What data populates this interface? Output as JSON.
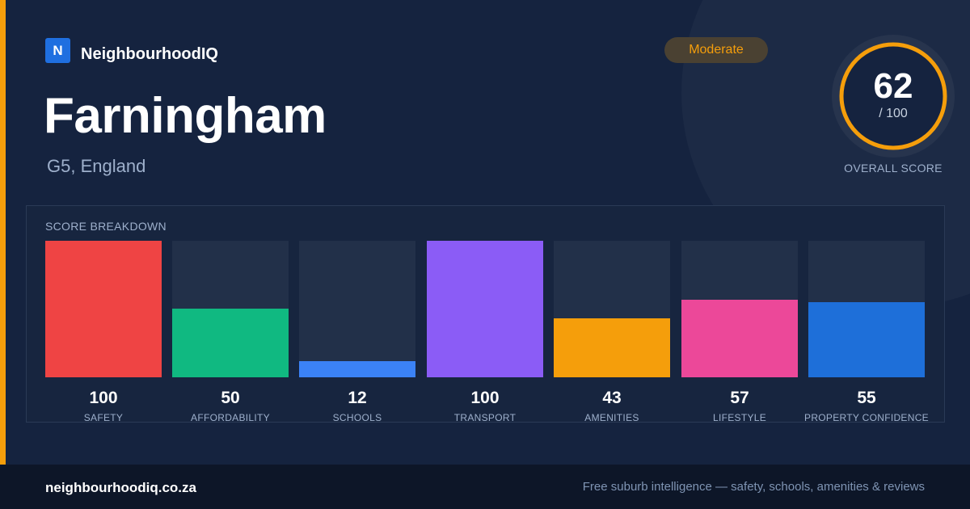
{
  "brand": {
    "logo_letter": "N",
    "name": "NeighbourhoodIQ"
  },
  "location": {
    "name": "Farningham",
    "region": "G5, England"
  },
  "rating_badge": {
    "label": "Moderate",
    "color": "#f59e0b"
  },
  "overall": {
    "score": "62",
    "max_label": "/ 100",
    "label": "OVERALL SCORE",
    "fraction": 0.62,
    "ring_color": "#f59e0b"
  },
  "breakdown": {
    "title": "SCORE BREAKDOWN",
    "max": 100,
    "items": [
      {
        "label": "SAFETY",
        "value": 100,
        "color": "#ef4444"
      },
      {
        "label": "AFFORDABILITY",
        "value": 50,
        "color": "#10b981"
      },
      {
        "label": "SCHOOLS",
        "value": 12,
        "color": "#3b82f6"
      },
      {
        "label": "TRANSPORT",
        "value": 100,
        "color": "#8b5cf6"
      },
      {
        "label": "AMENITIES",
        "value": 43,
        "color": "#f59e0b"
      },
      {
        "label": "LIFESTYLE",
        "value": 57,
        "color": "#ec4899"
      },
      {
        "label": "PROPERTY CONFIDENCE",
        "value": 55,
        "color": "#1e6fd9"
      }
    ]
  },
  "footer": {
    "url": "neighbourhoodiq.co.za",
    "tagline": "Free suburb intelligence — safety, schools, amenities & reviews"
  }
}
